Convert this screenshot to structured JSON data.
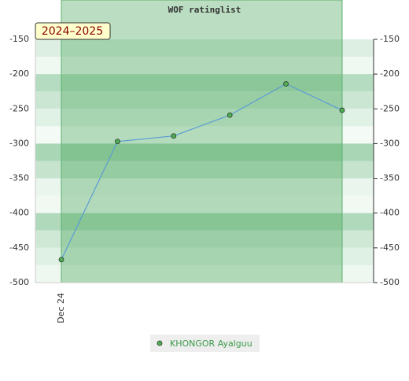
{
  "chart_data": {
    "type": "line",
    "title": "WOF ratinglist",
    "band_label": "2024–2025",
    "categories": [
      "Dec 24",
      null,
      null,
      null,
      null,
      null
    ],
    "series": [
      {
        "name": "KHONGOR Ayalguu",
        "color": "#5b9bd5",
        "marker_color": "#4caf50",
        "values": [
          -467,
          -297,
          -289,
          -259,
          -214,
          -252
        ]
      }
    ],
    "ylim": [
      -500,
      -150
    ],
    "yticks": [
      -500,
      -450,
      -400,
      -350,
      -300,
      -250,
      -200,
      -150
    ]
  }
}
